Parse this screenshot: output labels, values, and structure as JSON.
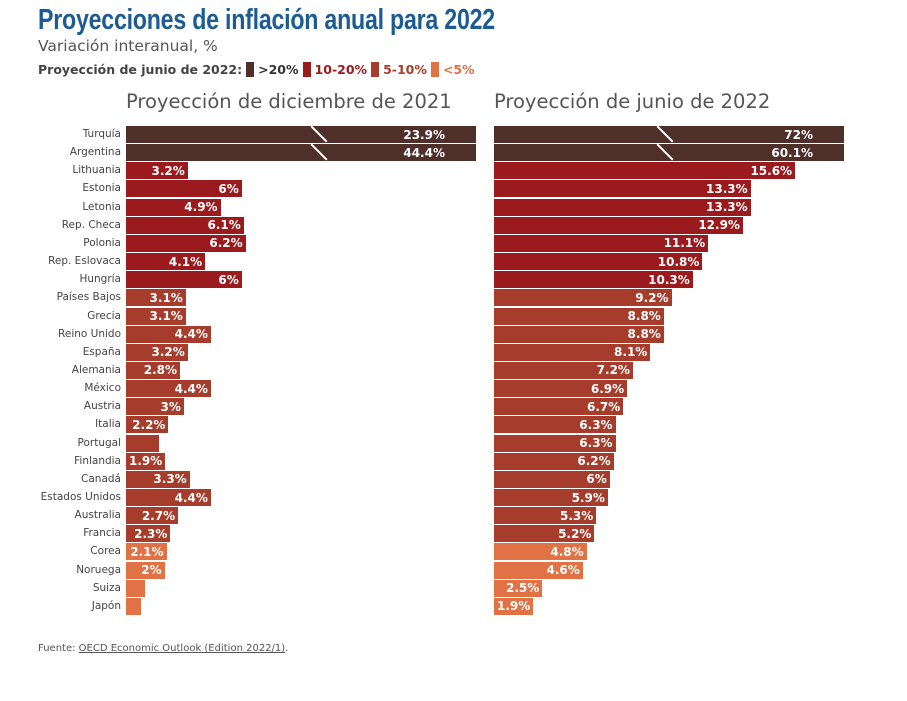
{
  "header": {
    "title": "Proyecciones de inflación anual para 2022",
    "subtitle": "Variación interanual, %"
  },
  "legend": {
    "label": "Proyección de junio de 2022:",
    "items": [
      {
        "label": ">20%",
        "color": "#4e2f2a",
        "text_color": "#333"
      },
      {
        "label": "10-20%",
        "color": "#9b1a1e",
        "text_color": "#9b1a1e"
      },
      {
        "label": "5-10%",
        "color": "#a63d2c",
        "text_color": "#a63d2c"
      },
      {
        "label": "<5%",
        "color": "#e07245",
        "text_color": "#e07245"
      }
    ]
  },
  "source": {
    "prefix": "Fuente: ",
    "link": "OECD Economic Outlook (Edition 2022/1)",
    "suffix": "."
  },
  "chart_data": [
    {
      "type": "bar",
      "orientation": "horizontal",
      "title": "Proyección de diciembre de 2021",
      "note": "Turquía y Argentina con barras truncadas",
      "categories": [
        "Turquía",
        "Argentina",
        "Lithuania",
        "Estonia",
        "Letonia",
        "Rep. Checa",
        "Polonia",
        "Rep. Eslovaca",
        "Hungría",
        "Países Bajos",
        "Grecia",
        "Reino Unido",
        "España",
        "Alemania",
        "México",
        "Austria",
        "Italia",
        "Portugal",
        "Finlandia",
        "Canadá",
        "Estados Unidos",
        "Australia",
        "Francia",
        "Corea",
        "Noruega",
        "Suiza",
        "Japón"
      ],
      "values": [
        23.9,
        44.4,
        3.2,
        6,
        4.9,
        6.1,
        6.2,
        4.1,
        6,
        3.1,
        3.1,
        4.4,
        3.2,
        2.8,
        4.4,
        3,
        2.2,
        1.7,
        1.9,
        3.3,
        4.4,
        2.7,
        2.3,
        2.1,
        2,
        1.0,
        0.8
      ],
      "labels": [
        "23.9%",
        "44.4%",
        "3.2%",
        "6%",
        "4.9%",
        "6.1%",
        "6.2%",
        "4.1%",
        "6%",
        "3.1%",
        "3.1%",
        "4.4%",
        "3.2%",
        "2.8%",
        "4.4%",
        "3%",
        "2.2%",
        "",
        "1.9%",
        "3.3%",
        "4.4%",
        "2.7%",
        "2.3%",
        "2.1%",
        "2%",
        "",
        ""
      ]
    },
    {
      "type": "bar",
      "orientation": "horizontal",
      "title": "Proyección de junio de 2022",
      "categories": [
        "Turquía",
        "Argentina",
        "Lithuania",
        "Estonia",
        "Letonia",
        "Rep. Checa",
        "Polonia",
        "Rep. Eslovaca",
        "Hungría",
        "Países Bajos",
        "Grecia",
        "Reino Unido",
        "España",
        "Alemania",
        "México",
        "Austria",
        "Italia",
        "Portugal",
        "Finlandia",
        "Canadá",
        "Estados Unidos",
        "Australia",
        "Francia",
        "Corea",
        "Noruega",
        "Suiza",
        "Japón"
      ],
      "values": [
        72,
        60.1,
        15.6,
        13.3,
        13.3,
        12.9,
        11.1,
        10.8,
        10.3,
        9.2,
        8.8,
        8.8,
        8.1,
        7.2,
        6.9,
        6.7,
        6.3,
        6.3,
        6.2,
        6,
        5.9,
        5.3,
        5.2,
        4.8,
        4.6,
        2.5,
        1.9
      ],
      "labels": [
        "72%",
        "60.1%",
        "15.6%",
        "13.3%",
        "13.3%",
        "12.9%",
        "11.1%",
        "10.8%",
        "10.3%",
        "9.2%",
        "8.8%",
        "8.8%",
        "8.1%",
        "7.2%",
        "6.9%",
        "6.7%",
        "6.3%",
        "6.3%",
        "6.2%",
        "6%",
        "5.9%",
        "5.3%",
        "5.2%",
        "4.8%",
        "4.6%",
        "2.5%",
        "1.9%"
      ]
    }
  ]
}
